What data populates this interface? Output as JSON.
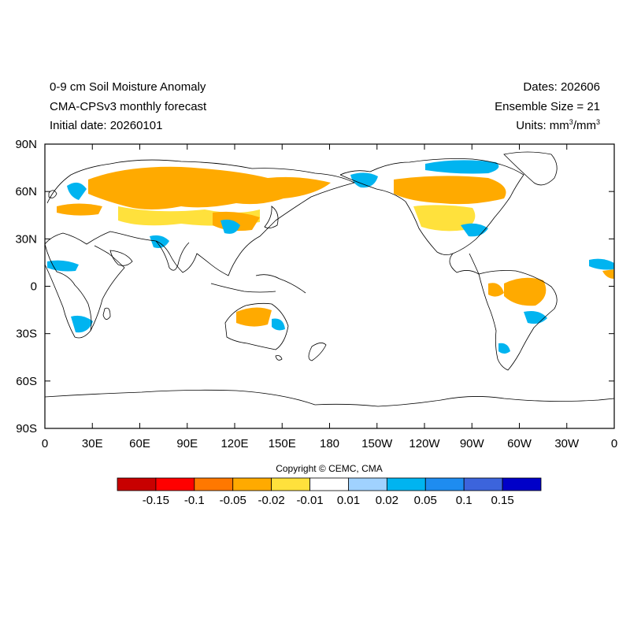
{
  "title": {
    "line1": "0-9 cm Soil Moisture Anomaly",
    "line2": "CMA-CPSv3 monthly forecast",
    "line3": "Initial date: 20260101"
  },
  "meta": {
    "dates": "Dates: 202606",
    "ensemble": "Ensemble Size = 21",
    "units_prefix": "Units: mm",
    "units_sup1": "3",
    "units_mid": "/mm",
    "units_sup2": "3"
  },
  "axes": {
    "lat_labels": [
      "90N",
      "60N",
      "30N",
      "0",
      "30S",
      "60S",
      "90S"
    ],
    "lon_labels": [
      "0",
      "30E",
      "60E",
      "90E",
      "120E",
      "150E",
      "180",
      "150W",
      "120W",
      "90W",
      "60W",
      "30W",
      "0"
    ]
  },
  "copyright": "Copyright © CEMC, CMA",
  "colorbar": {
    "colors": [
      "#c80000",
      "#ff0000",
      "#ff7800",
      "#ffaa00",
      "#ffe13c",
      "#ffffff",
      "#a0d2ff",
      "#00b4f0",
      "#1e8cf0",
      "#3c64dc",
      "#0000c8"
    ],
    "labels": [
      "-0.15",
      "-0.1",
      "-0.05",
      "-0.02",
      "-0.01",
      "0.01",
      "0.02",
      "0.05",
      "0.1",
      "0.15"
    ]
  },
  "anomaly_colors": {
    "dry": "#ffaa00",
    "moderate_dry": "#ffe13c",
    "wet": "#00b4f0",
    "light_wet": "#a0d2ff"
  }
}
